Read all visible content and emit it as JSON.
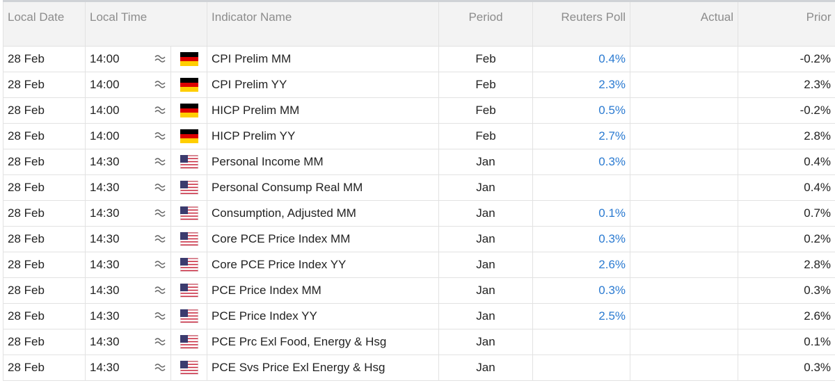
{
  "table": {
    "header": [
      "Local Date",
      "Local Time",
      "Indicator Name",
      "Period",
      "Reuters Poll",
      "Actual",
      "Prior"
    ],
    "rows": [
      {
        "date": "28 Feb",
        "time": "14:00",
        "indicator": "CPI Prelim MM",
        "period": "Feb",
        "poll": "0.4%",
        "prior": "-0.2%"
      },
      {
        "date": "28 Feb",
        "time": "14:00",
        "indicator": "CPI Prelim YY",
        "period": "Feb",
        "poll": "2.3%",
        "prior": "2.3%"
      },
      {
        "date": "28 Feb",
        "time": "14:00",
        "indicator": "HICP Prelim MM",
        "period": "Feb",
        "poll": "0.5%",
        "prior": "-0.2%"
      },
      {
        "date": "28 Feb",
        "time": "14:00",
        "indicator": "HICP Prelim YY",
        "period": "Feb",
        "poll": "2.7%",
        "prior": "2.8%"
      },
      {
        "date": "28 Feb",
        "time": "14:30",
        "indicator": "Personal Income MM",
        "period": "Jan",
        "poll": "0.3%",
        "prior": "0.4%"
      },
      {
        "date": "28 Feb",
        "time": "14:30",
        "indicator": "Personal Consump Real MM",
        "period": "Jan",
        "prior": "0.4%"
      },
      {
        "date": "28 Feb",
        "time": "14:30",
        "indicator": "Consumption, Adjusted MM",
        "period": "Jan",
        "poll": "0.1%",
        "prior": "0.7%"
      },
      {
        "date": "28 Feb",
        "time": "14:30",
        "indicator": "Core PCE Price Index MM",
        "period": "Jan",
        "poll": "0.3%",
        "prior": "0.2%"
      },
      {
        "date": "28 Feb",
        "time": "14:30",
        "indicator": "Core PCE Price Index YY",
        "period": "Jan",
        "poll": "2.6%",
        "prior": "2.8%"
      },
      {
        "date": "28 Feb",
        "time": "14:30",
        "indicator": "PCE Price Index MM",
        "period": "Jan",
        "poll": "0.3%",
        "prior": "0.3%"
      },
      {
        "date": "28 Feb",
        "time": "14:30",
        "indicator": "PCE Price Index YY",
        "period": "Jan",
        "poll": "2.5%",
        "prior": "2.6%"
      },
      {
        "date": "28 Feb",
        "time": "14:30",
        "indicator": "PCE Prc Exl Food, Energy & Hsg",
        "period": "Jan",
        "prior": "0.1%"
      },
      {
        "date": "28 Feb",
        "time": "14:30",
        "indicator": "PCE Svs Price Exl Energy & Hsg",
        "period": "Jan",
        "prior": "0.3%"
      }
    ]
  }
}
